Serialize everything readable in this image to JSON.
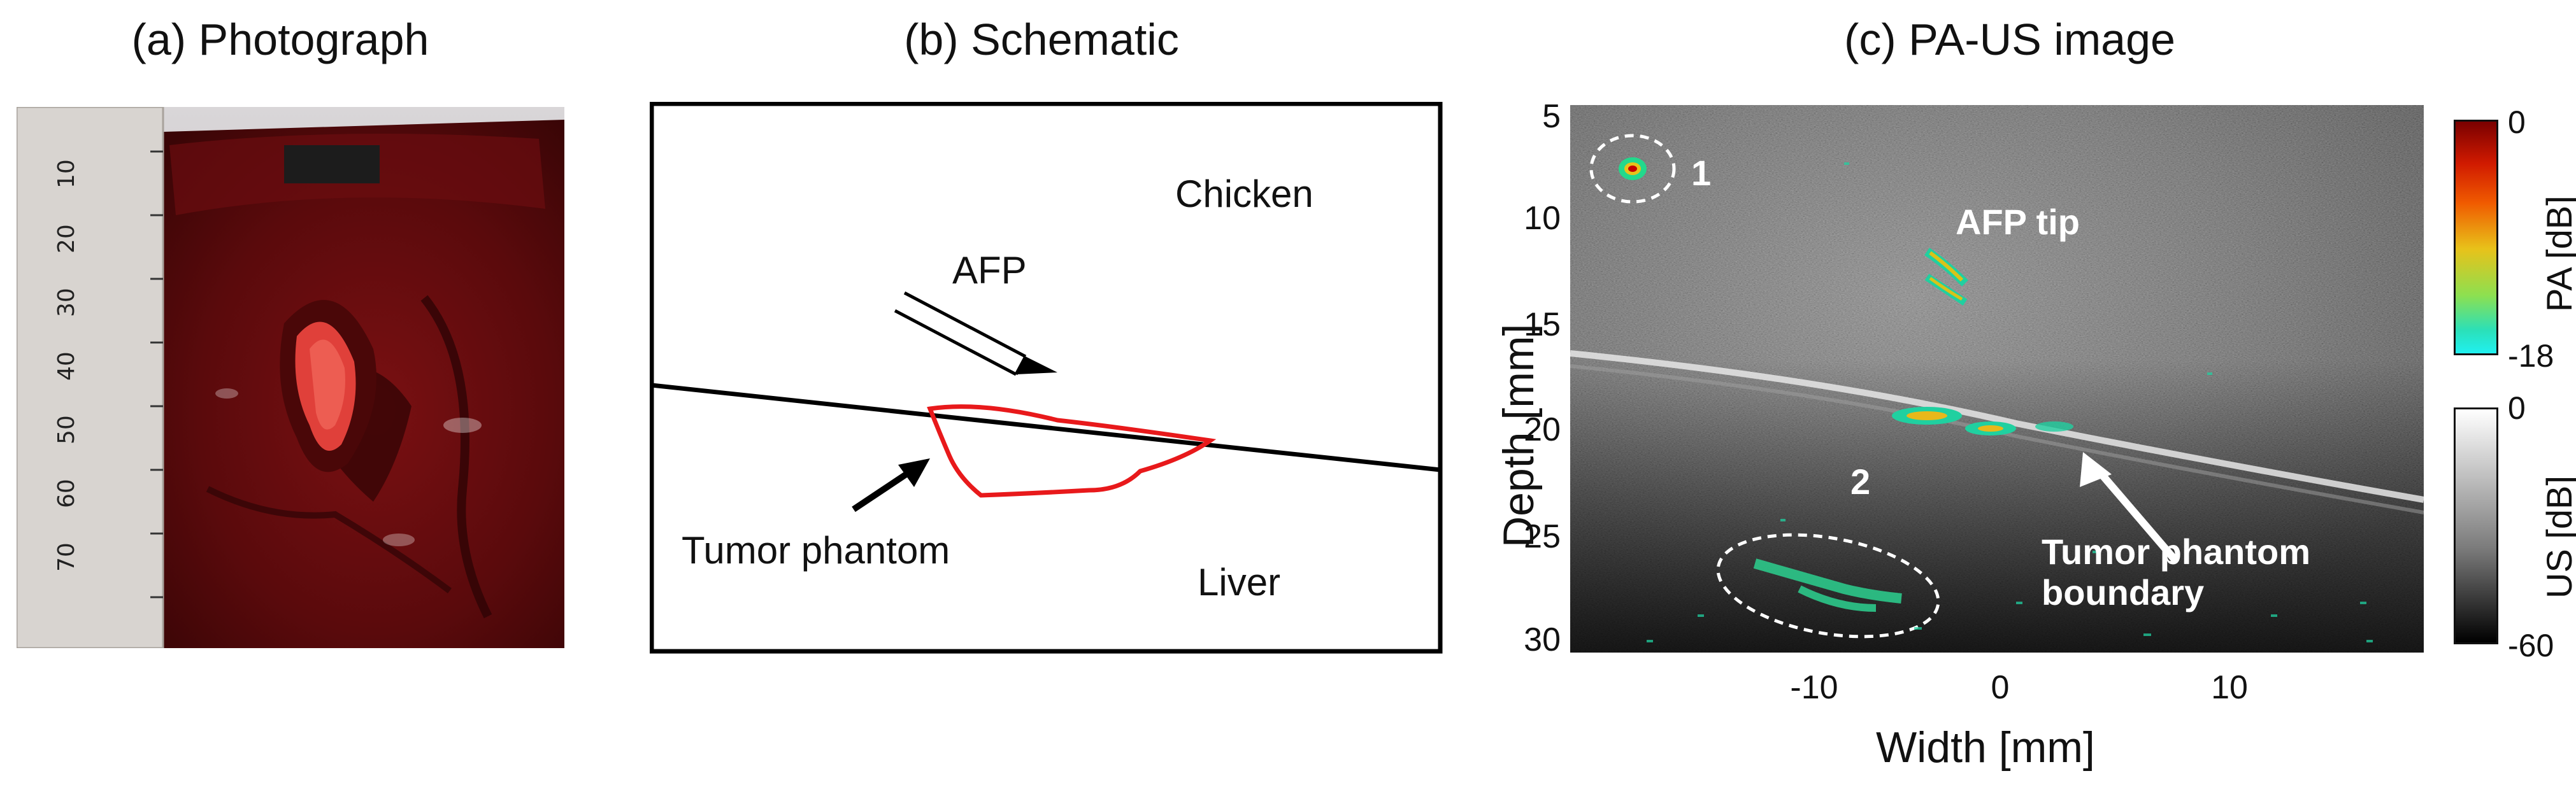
{
  "panels": {
    "a": {
      "title": "(a) Photograph"
    },
    "b": {
      "title": "(b) Schematic",
      "labels": {
        "chicken": "Chicken",
        "afp": "AFP",
        "tumor_phantom": "Tumor phantom",
        "liver": "Liver"
      },
      "colors": {
        "tumor_outline": "#e8191b",
        "lines": "#000000"
      }
    },
    "c": {
      "title": "(c) PA-US image",
      "y_axis_label": "Depth [mm]",
      "x_axis_label": "Width [mm]",
      "y_ticks": [
        "5",
        "10",
        "15",
        "20",
        "25",
        "30"
      ],
      "x_ticks": [
        "-10",
        "0",
        "10"
      ],
      "annotations": {
        "marker_1": "1",
        "marker_2": "2",
        "afp_tip": "AFP tip",
        "boundary_line1": "Tumor phantom",
        "boundary_line2": "boundary"
      },
      "pa_colorbar": {
        "label": "PA [dB]",
        "top": "0",
        "bottom": "-18"
      },
      "us_colorbar": {
        "label": "US [dB]",
        "top": "0",
        "bottom": "-60"
      }
    }
  },
  "ruler_numbers": [
    "10",
    "20",
    "30",
    "40",
    "50",
    "60",
    "70"
  ]
}
